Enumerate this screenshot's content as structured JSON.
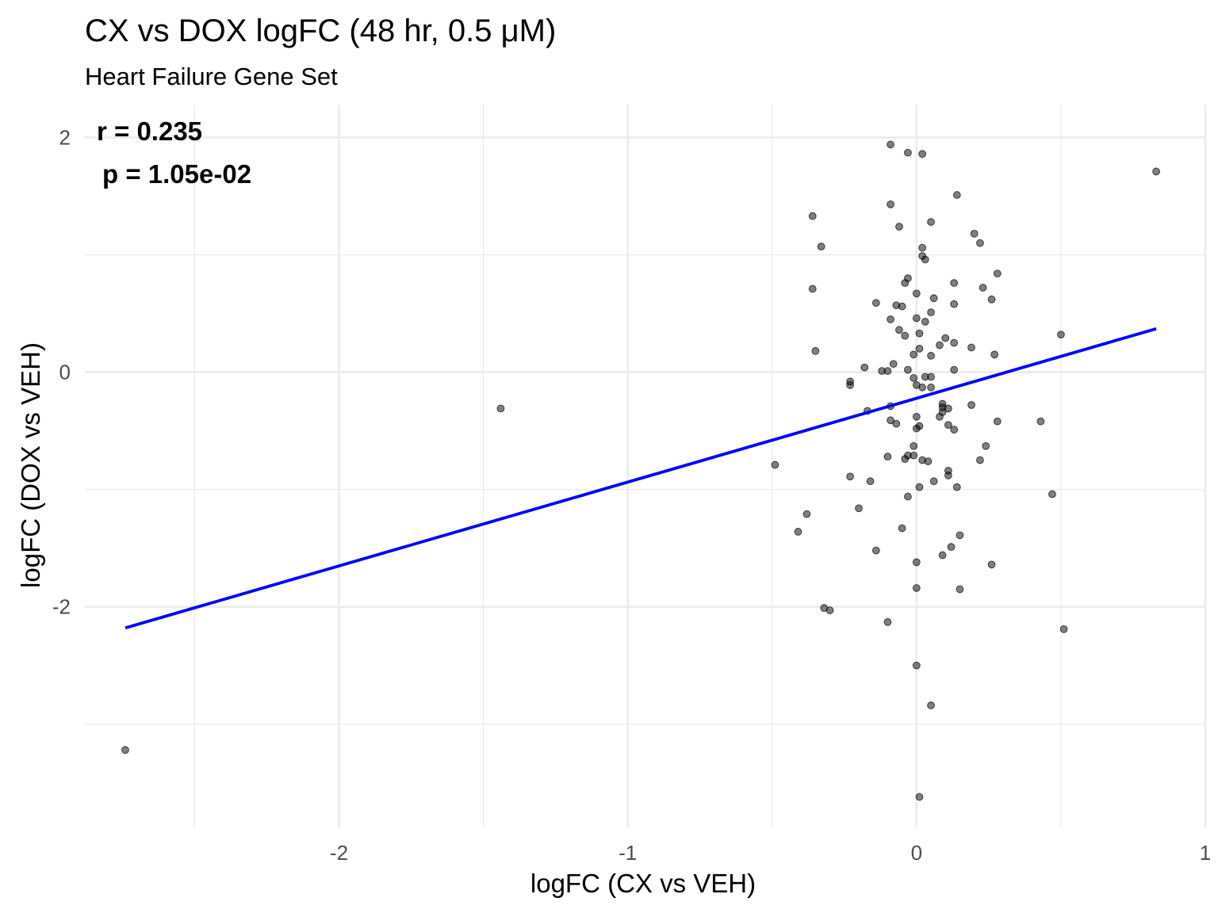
{
  "chart_data": {
    "type": "scatter",
    "title": "CX vs DOX logFC (48 hr, 0.5 μM)",
    "subtitle": "Heart Failure Gene Set",
    "xlabel": "logFC (CX vs VEH)",
    "ylabel": "logFC (DOX vs VEH)",
    "xlim": [
      -2.88,
      1.0
    ],
    "ylim": [
      -3.88,
      2.28
    ],
    "x_ticks": [
      -2,
      -1,
      0,
      1
    ],
    "y_ticks": [
      -2,
      0,
      2
    ],
    "x_tick_labels": [
      "-2",
      "-1",
      "0",
      "1"
    ],
    "y_tick_labels": [
      "-2",
      "0",
      "2"
    ],
    "annotation": {
      "r": "r = 0.235",
      "p": "p = 1.05e-02"
    },
    "fit_line": {
      "color": "#0000ff",
      "x": [
        -2.74,
        0.83
      ],
      "y": [
        -2.18,
        0.37
      ]
    },
    "point_color": "#000000",
    "points": [
      [
        -2.74,
        -3.22
      ],
      [
        -1.44,
        -0.31
      ],
      [
        -0.49,
        -0.79
      ],
      [
        -0.41,
        -1.36
      ],
      [
        -0.38,
        -1.21
      ],
      [
        -0.36,
        0.71
      ],
      [
        -0.36,
        1.33
      ],
      [
        -0.35,
        0.18
      ],
      [
        -0.33,
        1.07
      ],
      [
        -0.32,
        -2.01
      ],
      [
        -0.3,
        -2.03
      ],
      [
        -0.23,
        -0.08
      ],
      [
        -0.23,
        -0.11
      ],
      [
        -0.2,
        -1.16
      ],
      [
        -0.18,
        0.04
      ],
      [
        -0.17,
        -0.33
      ],
      [
        -0.16,
        -0.93
      ],
      [
        -0.23,
        -0.89
      ],
      [
        -0.14,
        0.59
      ],
      [
        -0.14,
        -1.52
      ],
      [
        -0.12,
        0.01
      ],
      [
        -0.1,
        0.01
      ],
      [
        -0.1,
        -0.72
      ],
      [
        -0.1,
        -2.13
      ],
      [
        -0.09,
        1.43
      ],
      [
        -0.09,
        1.94
      ],
      [
        -0.09,
        0.45
      ],
      [
        -0.09,
        -0.41
      ],
      [
        -0.09,
        -0.29
      ],
      [
        -0.08,
        0.07
      ],
      [
        -0.07,
        0.57
      ],
      [
        -0.07,
        -0.44
      ],
      [
        -0.06,
        0.36
      ],
      [
        -0.06,
        1.24
      ],
      [
        -0.05,
        0.56
      ],
      [
        -0.04,
        0.31
      ],
      [
        -0.04,
        0.76
      ],
      [
        -0.03,
        0.02
      ],
      [
        -0.04,
        -0.74
      ],
      [
        -0.05,
        -1.33
      ],
      [
        -0.03,
        -0.71
      ],
      [
        -0.03,
        0.8
      ],
      [
        -0.03,
        -1.06
      ],
      [
        -0.03,
        1.87
      ],
      [
        -0.01,
        -0.63
      ],
      [
        -0.01,
        0.15
      ],
      [
        -0.01,
        -0.05
      ],
      [
        -0.01,
        -0.71
      ],
      [
        0.0,
        -0.11
      ],
      [
        0.0,
        -0.38
      ],
      [
        0.0,
        -0.48
      ],
      [
        0.0,
        0.46
      ],
      [
        0.0,
        0.67
      ],
      [
        0.0,
        -1.62
      ],
      [
        0.0,
        -1.84
      ],
      [
        0.0,
        -2.5
      ],
      [
        0.01,
        0.2
      ],
      [
        0.01,
        -0.46
      ],
      [
        0.01,
        0.33
      ],
      [
        0.01,
        -3.62
      ],
      [
        0.01,
        -0.98
      ],
      [
        0.02,
        -0.75
      ],
      [
        0.02,
        0.99
      ],
      [
        0.02,
        1.06
      ],
      [
        0.02,
        -0.13
      ],
      [
        0.02,
        1.86
      ],
      [
        0.03,
        -0.04
      ],
      [
        0.03,
        0.96
      ],
      [
        0.03,
        0.43
      ],
      [
        0.04,
        -0.76
      ],
      [
        0.05,
        0.51
      ],
      [
        0.05,
        -0.13
      ],
      [
        0.05,
        -0.04
      ],
      [
        0.05,
        0.14
      ],
      [
        0.05,
        1.28
      ],
      [
        0.05,
        -2.84
      ],
      [
        0.06,
        -0.93
      ],
      [
        0.06,
        0.63
      ],
      [
        0.08,
        0.23
      ],
      [
        0.08,
        -0.38
      ],
      [
        0.09,
        -0.27
      ],
      [
        0.09,
        -0.3
      ],
      [
        0.09,
        -1.56
      ],
      [
        0.09,
        -0.34
      ],
      [
        0.1,
        0.29
      ],
      [
        0.11,
        -0.84
      ],
      [
        0.11,
        -0.31
      ],
      [
        0.11,
        -0.88
      ],
      [
        0.11,
        -0.45
      ],
      [
        0.12,
        -1.49
      ],
      [
        0.13,
        -0.49
      ],
      [
        0.13,
        0.76
      ],
      [
        0.13,
        0.58
      ],
      [
        0.13,
        0.02
      ],
      [
        0.13,
        0.25
      ],
      [
        0.14,
        1.51
      ],
      [
        0.14,
        -0.98
      ],
      [
        0.15,
        -1.39
      ],
      [
        0.15,
        -1.85
      ],
      [
        0.19,
        0.21
      ],
      [
        0.19,
        -0.28
      ],
      [
        0.2,
        1.18
      ],
      [
        0.22,
        -0.75
      ],
      [
        0.22,
        1.1
      ],
      [
        0.23,
        0.72
      ],
      [
        0.24,
        -0.63
      ],
      [
        0.26,
        0.62
      ],
      [
        0.26,
        -1.64
      ],
      [
        0.27,
        0.15
      ],
      [
        0.28,
        0.84
      ],
      [
        0.28,
        -0.42
      ],
      [
        0.43,
        -0.42
      ],
      [
        0.47,
        -1.04
      ],
      [
        0.5,
        0.32
      ],
      [
        0.51,
        -2.19
      ],
      [
        0.83,
        1.71
      ]
    ]
  }
}
